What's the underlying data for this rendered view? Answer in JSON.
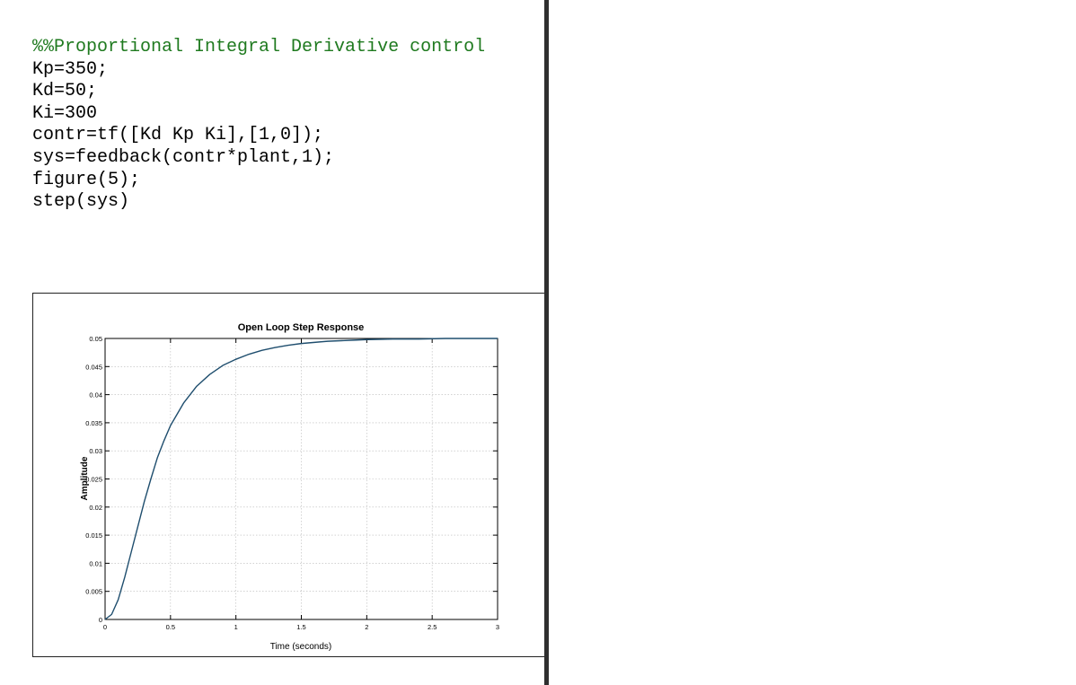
{
  "code": {
    "lines": [
      "%%Proportional Integral Derivative control",
      "Kp=350;",
      "Kd=50;",
      "Ki=300",
      "contr=tf([Kd Kp Ki],[1,0]);",
      "sys=feedback(contr*plant,1);",
      "figure(5);",
      "step(sys)"
    ]
  },
  "chart_data": {
    "type": "line",
    "title": "Open Loop Step Response",
    "xlabel": "Time (seconds)",
    "ylabel": "Amplitude",
    "xlim": [
      0,
      3
    ],
    "ylim": [
      0,
      0.05
    ],
    "x_ticks": [
      0,
      0.5,
      1,
      1.5,
      2,
      2.5,
      3
    ],
    "x_tick_labels": [
      "0",
      "0.5",
      "1",
      "1.5",
      "2",
      "2.5",
      "3"
    ],
    "y_ticks": [
      0,
      0.005,
      0.01,
      0.015,
      0.02,
      0.025,
      0.03,
      0.035,
      0.04,
      0.045,
      0.05
    ],
    "y_tick_labels": [
      "0",
      "0.005",
      "0.01",
      "0.015",
      "0.02",
      "0.025",
      "0.03",
      "0.035",
      "0.04",
      "0.045",
      "0.05"
    ],
    "grid": true,
    "series": [
      {
        "x": [
          0,
          0.05,
          0.1,
          0.15,
          0.2,
          0.25,
          0.3,
          0.35,
          0.4,
          0.45,
          0.5,
          0.6,
          0.7,
          0.8,
          0.9,
          1.0,
          1.1,
          1.2,
          1.3,
          1.4,
          1.5,
          1.6,
          1.7,
          1.8,
          1.9,
          2.0,
          2.2,
          2.4,
          2.6,
          2.8,
          3.0
        ],
        "y": [
          0,
          0.0009,
          0.0035,
          0.0075,
          0.012,
          0.0165,
          0.021,
          0.025,
          0.0288,
          0.0318,
          0.0345,
          0.0385,
          0.0415,
          0.0436,
          0.0452,
          0.0463,
          0.0472,
          0.0479,
          0.0484,
          0.0488,
          0.0491,
          0.0493,
          0.0495,
          0.0496,
          0.0497,
          0.0498,
          0.0499,
          0.0499,
          0.05,
          0.05,
          0.05
        ],
        "color": "#1f4e6e"
      }
    ]
  }
}
